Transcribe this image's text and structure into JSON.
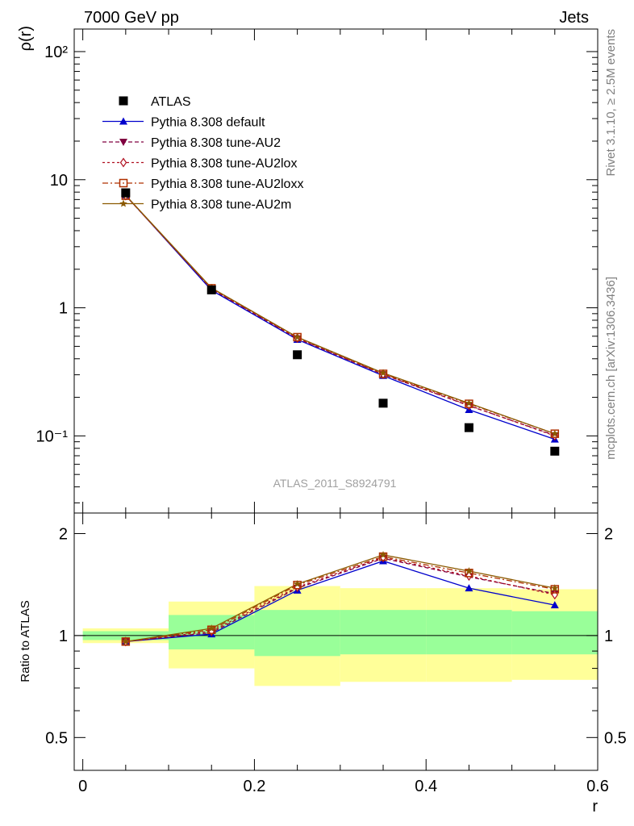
{
  "header": {
    "left": "7000 GeV pp",
    "right": "Jets"
  },
  "side_labels": {
    "rivet": "Rivet 3.1.10, ≥ 2.5M events",
    "mcplots": "mcplots.cern.ch [arXiv:1306.3436]"
  },
  "watermark": "ATLAS_2011_S8924791",
  "colors": {
    "data": "#000000",
    "default": "#0000cc",
    "au2": "#800040",
    "au2lox": "#b01020",
    "au2loxx": "#b03000",
    "au2m": "#8b5a00",
    "band_inner": "#99ff99",
    "band_outer": "#ffff99"
  },
  "chart_data": [
    {
      "type": "line",
      "panel": "main",
      "ylabel": "ρ(r)",
      "yscale": "log",
      "ylim": [
        0.025,
        150
      ],
      "xlim": [
        -0.01,
        0.6
      ],
      "y_tick_labels": [
        "10⁻¹",
        "1",
        "10",
        "10²"
      ],
      "legend": [
        "ATLAS",
        "Pythia 8.308 default",
        "Pythia 8.308 tune-AU2",
        "Pythia 8.308 tune-AU2lox",
        "Pythia 8.308 tune-AU2loxx",
        "Pythia 8.308 tune-AU2m"
      ],
      "legend_position": "top-left",
      "x": [
        0.05,
        0.15,
        0.25,
        0.35,
        0.45,
        0.55
      ],
      "data": {
        "name": "ATLAS",
        "values": [
          7.9,
          1.38,
          0.43,
          0.18,
          0.116,
          0.076
        ],
        "bins": [
          [
            0.0,
            0.1
          ],
          [
            0.1,
            0.2
          ],
          [
            0.2,
            0.3
          ],
          [
            0.3,
            0.4
          ],
          [
            0.4,
            0.5
          ],
          [
            0.5,
            0.6
          ]
        ]
      },
      "series": [
        {
          "name": "Pythia 8.308 default",
          "key": "default",
          "values": [
            7.55,
            1.37,
            0.565,
            0.295,
            0.16,
            0.094
          ]
        },
        {
          "name": "Pythia 8.308 tune-AU2",
          "key": "au2",
          "values": [
            7.5,
            1.4,
            0.575,
            0.302,
            0.172,
            0.101
          ]
        },
        {
          "name": "Pythia 8.308 tune-AU2lox",
          "key": "au2lox",
          "values": [
            7.5,
            1.41,
            0.58,
            0.303,
            0.173,
            0.1
          ]
        },
        {
          "name": "Pythia 8.308 tune-AU2loxx",
          "key": "au2loxx",
          "values": [
            7.5,
            1.42,
            0.59,
            0.305,
            0.178,
            0.104
          ]
        },
        {
          "name": "Pythia 8.308 tune-AU2m",
          "key": "au2m",
          "values": [
            7.55,
            1.43,
            0.59,
            0.31,
            0.18,
            0.104
          ]
        }
      ]
    },
    {
      "type": "line",
      "panel": "ratio",
      "ylabel": "Ratio to ATLAS",
      "xlabel": "r",
      "yscale": "log",
      "ylim": [
        0.4,
        2.3
      ],
      "xlim": [
        -0.01,
        0.6
      ],
      "y_tick_labels": [
        "0.5",
        "1",
        "2"
      ],
      "x_tick_labels": [
        "0",
        "0.2",
        "0.4",
        "0.6"
      ],
      "x": [
        0.05,
        0.15,
        0.25,
        0.35,
        0.45,
        0.55
      ],
      "bands": [
        {
          "x": [
            0.0,
            0.1
          ],
          "inner": [
            0.97,
            1.03
          ],
          "outer": [
            0.95,
            1.05
          ]
        },
        {
          "x": [
            0.1,
            0.2
          ],
          "inner": [
            0.91,
            1.15
          ],
          "outer": [
            0.8,
            1.26
          ]
        },
        {
          "x": [
            0.2,
            0.3
          ],
          "inner": [
            0.87,
            1.19
          ],
          "outer": [
            0.71,
            1.4
          ]
        },
        {
          "x": [
            0.3,
            0.4
          ],
          "inner": [
            0.88,
            1.19
          ],
          "outer": [
            0.73,
            1.38
          ]
        },
        {
          "x": [
            0.4,
            0.5
          ],
          "inner": [
            0.88,
            1.19
          ],
          "outer": [
            0.73,
            1.38
          ]
        },
        {
          "x": [
            0.5,
            0.6
          ],
          "inner": [
            0.88,
            1.18
          ],
          "outer": [
            0.74,
            1.37
          ]
        }
      ],
      "series": [
        {
          "name": "Pythia 8.308 default",
          "key": "default",
          "values": [
            0.96,
            1.01,
            1.36,
            1.66,
            1.38,
            1.23
          ]
        },
        {
          "name": "Pythia 8.308 tune-AU2",
          "key": "au2",
          "values": [
            0.96,
            1.02,
            1.38,
            1.69,
            1.49,
            1.33
          ]
        },
        {
          "name": "Pythia 8.308 tune-AU2lox",
          "key": "au2lox",
          "values": [
            0.96,
            1.03,
            1.39,
            1.7,
            1.5,
            1.32
          ]
        },
        {
          "name": "Pythia 8.308 tune-AU2loxx",
          "key": "au2loxx",
          "values": [
            0.96,
            1.04,
            1.41,
            1.71,
            1.53,
            1.37
          ]
        },
        {
          "name": "Pythia 8.308 tune-AU2m",
          "key": "au2m",
          "values": [
            0.96,
            1.05,
            1.42,
            1.73,
            1.55,
            1.38
          ]
        }
      ]
    }
  ]
}
